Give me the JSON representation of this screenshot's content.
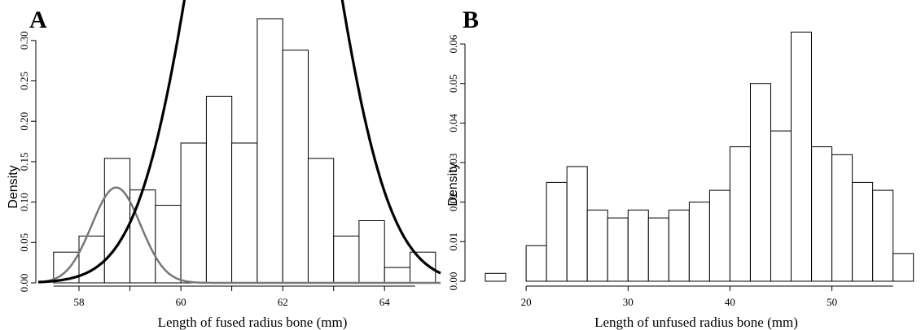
{
  "chart_data": [
    {
      "panel": "A",
      "type": "bar",
      "xlabel": "Length of fused radius bone (mm)",
      "ylabel": "Density",
      "xlim": [
        57.2,
        65.1
      ],
      "ylim": [
        0,
        0.33
      ],
      "xticks": [
        58,
        60,
        62,
        64
      ],
      "yticks": [
        0.0,
        0.05,
        0.1,
        0.15,
        0.2,
        0.25,
        0.3
      ],
      "ytick_labels": [
        "0.00",
        "0.05",
        "0.10",
        "0.15",
        "0.20",
        "0.25",
        "0.30"
      ],
      "bin_width": 0.5,
      "bins": [
        {
          "x0": 57.5,
          "y": 0.038
        },
        {
          "x0": 58.0,
          "y": 0.058
        },
        {
          "x0": 58.5,
          "y": 0.154
        },
        {
          "x0": 59.0,
          "y": 0.115
        },
        {
          "x0": 59.5,
          "y": 0.096
        },
        {
          "x0": 60.0,
          "y": 0.173
        },
        {
          "x0": 60.5,
          "y": 0.231
        },
        {
          "x0": 61.0,
          "y": 0.173
        },
        {
          "x0": 61.5,
          "y": 0.327
        },
        {
          "x0": 62.0,
          "y": 0.288
        },
        {
          "x0": 62.5,
          "y": 0.154
        },
        {
          "x0": 63.0,
          "y": 0.058
        },
        {
          "x0": 63.5,
          "y": 0.077
        },
        {
          "x0": 64.0,
          "y": 0.019
        },
        {
          "x0": 64.5,
          "y": 0.038
        }
      ],
      "curves": [
        {
          "mean": 58.73,
          "sd": 0.48,
          "scale": 0.118,
          "color": "#777777",
          "stroke_width": 2.5
        },
        {
          "mean": 61.62,
          "sd": 1.2,
          "scale": 0.8064,
          "color": "#000000",
          "stroke_width": 3.2
        }
      ]
    },
    {
      "panel": "B",
      "type": "bar",
      "xlabel": "Length of unfused radius bone (mm)",
      "ylabel": "Density",
      "xlim": [
        14,
        58.5
      ],
      "ylim": [
        0,
        0.067
      ],
      "xticks": [
        20,
        30,
        40,
        50
      ],
      "yticks": [
        0.0,
        0.01,
        0.02,
        0.03,
        0.04,
        0.05,
        0.06
      ],
      "ytick_labels": [
        "0.00",
        "0.01",
        "0.02",
        "0.03",
        "0.04",
        "0.05",
        "0.06"
      ],
      "bin_width": 2,
      "bins": [
        {
          "x0": 16,
          "y": 0.002
        },
        {
          "x0": 18,
          "y": 0.0
        },
        {
          "x0": 20,
          "y": 0.009
        },
        {
          "x0": 22,
          "y": 0.025
        },
        {
          "x0": 24,
          "y": 0.029
        },
        {
          "x0": 26,
          "y": 0.018
        },
        {
          "x0": 28,
          "y": 0.016
        },
        {
          "x0": 30,
          "y": 0.018
        },
        {
          "x0": 32,
          "y": 0.016
        },
        {
          "x0": 34,
          "y": 0.018
        },
        {
          "x0": 36,
          "y": 0.02
        },
        {
          "x0": 38,
          "y": 0.023
        },
        {
          "x0": 40,
          "y": 0.034
        },
        {
          "x0": 42,
          "y": 0.05
        },
        {
          "x0": 44,
          "y": 0.038
        },
        {
          "x0": 46,
          "y": 0.063
        },
        {
          "x0": 48,
          "y": 0.034
        },
        {
          "x0": 50,
          "y": 0.032
        },
        {
          "x0": 52,
          "y": 0.025
        },
        {
          "x0": 54,
          "y": 0.023
        },
        {
          "x0": 56,
          "y": 0.007
        }
      ]
    }
  ]
}
